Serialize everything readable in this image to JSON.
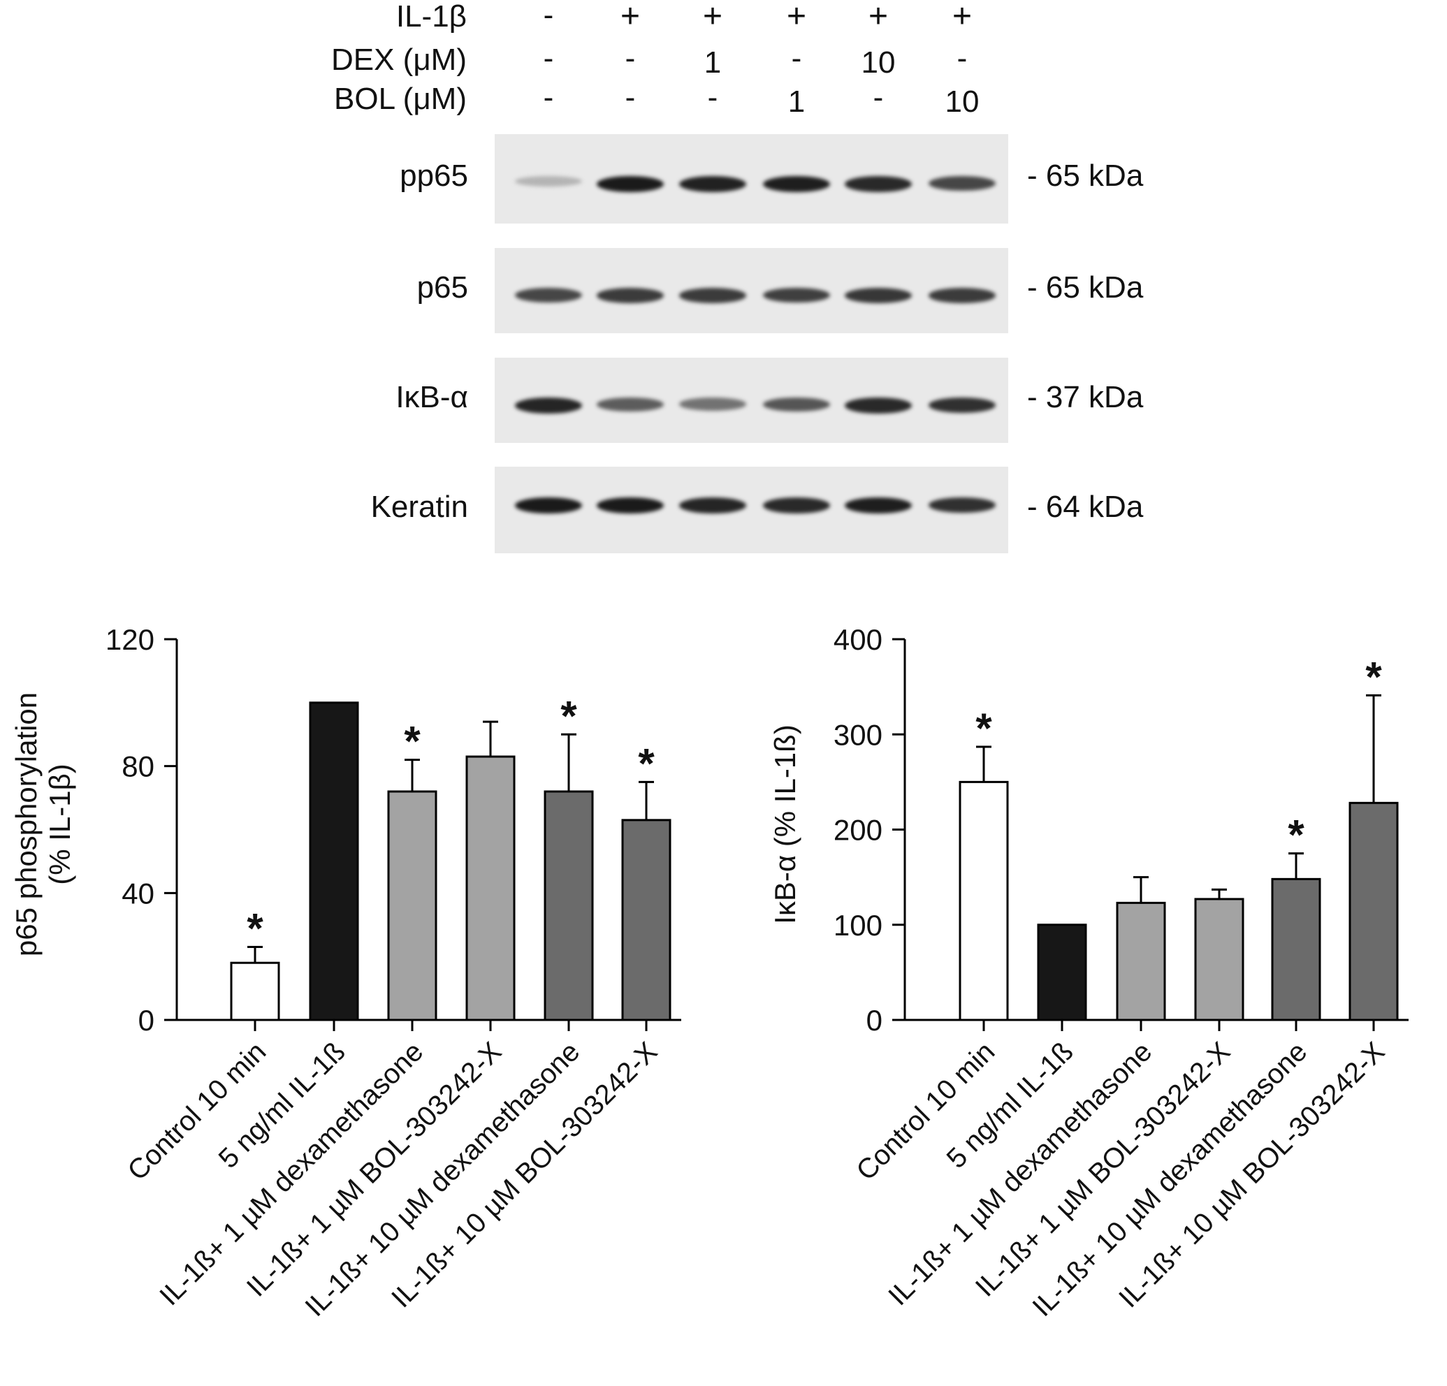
{
  "blot": {
    "treatments": [
      {
        "label": "IL-1β",
        "values": [
          "-",
          "+",
          "+",
          "+",
          "+",
          "+"
        ]
      },
      {
        "label": "DEX (μM)",
        "values": [
          "-",
          "-",
          "1",
          "-",
          "10",
          "-"
        ]
      },
      {
        "label": "BOL (μM)",
        "values": [
          "-",
          "-",
          "-",
          "1",
          "-",
          "10"
        ]
      }
    ],
    "rows": [
      {
        "label": "pp65",
        "kda": "- 65 kDa",
        "intensity": [
          0.25,
          0.95,
          0.92,
          0.93,
          0.88,
          0.75
        ]
      },
      {
        "label": "p65",
        "kda": "- 65 kDa",
        "intensity": [
          0.75,
          0.8,
          0.8,
          0.78,
          0.82,
          0.8
        ]
      },
      {
        "label": "IκB-α",
        "kda": "- 37 kDa",
        "intensity": [
          0.9,
          0.65,
          0.55,
          0.68,
          0.88,
          0.85
        ]
      },
      {
        "label": "Keratin",
        "kda": "- 64 kDa",
        "intensity": [
          0.95,
          0.95,
          0.9,
          0.88,
          0.93,
          0.85
        ]
      }
    ]
  },
  "chart_data": [
    {
      "type": "bar",
      "ylabel_lines": [
        "p65 phosphorylation",
        "(% IL-1β)"
      ],
      "ylim": [
        0,
        120
      ],
      "yticks": [
        0,
        40,
        80,
        120
      ],
      "categories": [
        "Control 10 min",
        "5 ng/ml IL-1ß",
        "IL-1ß+ 1 µM dexamethasone",
        "IL-1ß+ 1 µM BOL-303242-X",
        "IL-1ß+ 10 µM dexamethasone",
        "IL-1ß+ 10 µM BOL-303242-X"
      ],
      "values": [
        18,
        100,
        72,
        83,
        72,
        63
      ],
      "errors": [
        5,
        0,
        10,
        11,
        18,
        12
      ],
      "significant": [
        true,
        false,
        true,
        false,
        true,
        true
      ],
      "fills": [
        "#ffffff",
        "#171717",
        "#a3a3a3",
        "#a3a3a3",
        "#6b6b6b",
        "#6b6b6b"
      ]
    },
    {
      "type": "bar",
      "ylabel_lines": [
        "IκB-α (% IL-1ß)"
      ],
      "ylim": [
        0,
        400
      ],
      "yticks": [
        0,
        100,
        200,
        300,
        400
      ],
      "categories": [
        "Control 10 min",
        "5 ng/ml IL-1ß",
        "IL-1ß+ 1 µM dexamethasone",
        "IL-1ß+ 1 µM BOL-303242-X",
        "IL-1ß+ 10 µM dexamethasone",
        "IL-1ß+ 10 µM BOL-303242-X"
      ],
      "values": [
        250,
        100,
        123,
        127,
        148,
        228
      ],
      "errors": [
        37,
        0,
        27,
        10,
        27,
        113
      ],
      "significant": [
        true,
        false,
        false,
        false,
        true,
        true
      ],
      "fills": [
        "#ffffff",
        "#171717",
        "#a3a3a3",
        "#a3a3a3",
        "#6b6b6b",
        "#6b6b6b"
      ]
    }
  ],
  "star": "*"
}
